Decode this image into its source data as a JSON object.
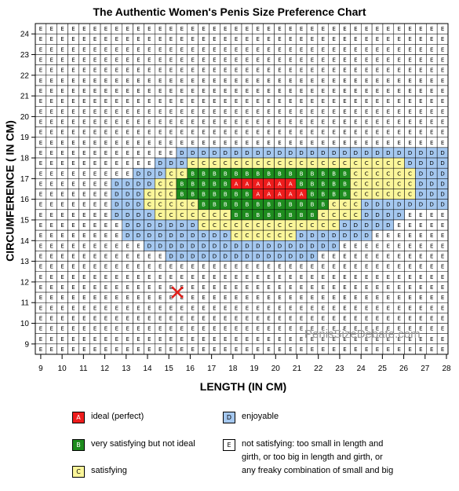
{
  "chart_data": {
    "type": "heatmap",
    "title": "The Authentic Women's Penis Size Preference Chart",
    "xlabel": "LENGTH  (IN CM)",
    "ylabel": "CIRCUMFERENCE ( IN CM)",
    "x_ticks": [
      "9",
      "10",
      "11",
      "12",
      "13",
      "14",
      "15",
      "16",
      "17",
      "18",
      "19",
      "20",
      "21",
      "22",
      "23",
      "24",
      "25",
      "26",
      "27",
      "28"
    ],
    "y_ticks": [
      "9",
      "10",
      "11",
      "12",
      "13",
      "14",
      "15",
      "16",
      "17",
      "18",
      "19",
      "20",
      "21",
      "22",
      "23",
      "24"
    ],
    "xlim": [
      9,
      28
    ],
    "ylim": [
      8.5,
      24.5
    ],
    "grid": true,
    "colors": {
      "A": "#ee1c1c",
      "B": "#1e8c1e",
      "C": "#fbf69a",
      "D": "#a5c8f0",
      "E": "#ffffff"
    },
    "rows_top_to_bottom": [
      "EEEEEEEEEEEEEEEEEEEEEEEEEEEEEEEEEEEEEE",
      "EEEEEEEEEEEEEEEEEEEEEEEEEEEEEEEEEEEEEE",
      "EEEEEEEEEEEEEEEEEEEEEEEEEEEEEEEEEEEEEE",
      "EEEEEEEEEEEEEEEEEEEEEEEEEEEEEEEEEEEEEE",
      "EEEEEEEEEEEEEEEEEEEEEEEEEEEEEEEEEEEEEE",
      "EEEEEEEEEEEEEEEEEEEEEEEEEEEEEEEEEEEEEE",
      "EEEEEEEEEEEEEEEEEEEEEEEEEEEEEEEEEEEEEE",
      "EEEEEEEEEEEEEEEEEEEEEEEEEEEEEEEEEEEEEE",
      "EEEEEEEEEEEEEEEEEEEEEEEEEEEEEEEEEEEEEE",
      "EEEEEEEEEEEEEEEEEEEEEEEEEEEEEEEEEEEEEE",
      "EEEEEEEEEEEEEEEEEEEEEEEEEEEEEEEEEEEEEE",
      "EEEEEEEEEEEEEEEEEEEEEEEEEEEEEEEEEEEEEE",
      "EEEEEEEEEEEEEDDDDDDDDDDDDDDDDDDDDDDDDD",
      "EEEEEEEEEEEDDDCCCCCCCCCCCCCCCCCCCCDDDD",
      "EEEEEEEEEDDDCCBBBBBBBBBBBBBBBCCCCCCDDD",
      "EEEEEEEDDDDCCBBBBBAAAAAABBBBBCCCCCCDDD",
      "EEEEEEEDDDCCCBBBBBBBAAAAABBBBCCCCCCDDD",
      "EEEEEEEDDDCCCCCBBBBBBBBBBBBCCCDDDDDDDD",
      "EEEEEEEDDDDCCCCCCCBBBBBBBBCCCCDDDDEEEE",
      "EEEEEEEEDDDDDDDCCCCCCCCCCCCCDDDDDEEEEE",
      "EEEEEEEEDDDDDDDDDDCCCCCCDDDDDDDEEEEEEE",
      "EEEEEEEEEEDDDDDDDDDDDDDDDDDDEEEEEEEEEE",
      "EEEEEEEEEEEEDDDDDDDDDDDDDDEEEEEEEEEEEE",
      "EEEEEEEEEEEEEEEEEEEEEEEEEEEEEEEEEEEEEE",
      "EEEEEEEEEEEEEEEEEEEEEEEEEEEEEEEEEEEEEE",
      "EEEEEEEEEEEEEEEEEEEEEEEEEEEEEEEEEEEEEE",
      "EEEEEEEEEEEEEEEEEEEEEEEEEEEEEEEEEEEEEE",
      "EEEEEEEEEEEEEEEEEEEEEEEEEEEEEEEEEEEEEE",
      "EEEEEEEEEEEEEEEEEEEEEEEEEEEEEEEEEEEEEE",
      "EEEEEEEEEEEEEEEEEEEEEEEEEEEEEEEEEEEEEE",
      "EEEEEEEEEEEEEEEEEEEEEEEEEEEEEEEEEEEEEE",
      "EEEEEEEEEEEEEEEEEEEEEEEEEEEEEEEEEEEEEE"
    ],
    "marker": {
      "x": 15.4,
      "y": 11.5,
      "symbol": "X",
      "color": "#e0201a"
    },
    "legend": [
      {
        "code": "A",
        "label": "ideal (perfect)"
      },
      {
        "code": "B",
        "label": "very satisfying but not ideal"
      },
      {
        "code": "C",
        "label": "satisfying"
      },
      {
        "code": "D",
        "label": "enjoyable"
      },
      {
        "code": "E",
        "label": "not satisfying: too small in length and girth, or too big in length and girth, or any freaky combination of small and big"
      }
    ],
    "watermark": "PenisSizeDebate.com"
  }
}
